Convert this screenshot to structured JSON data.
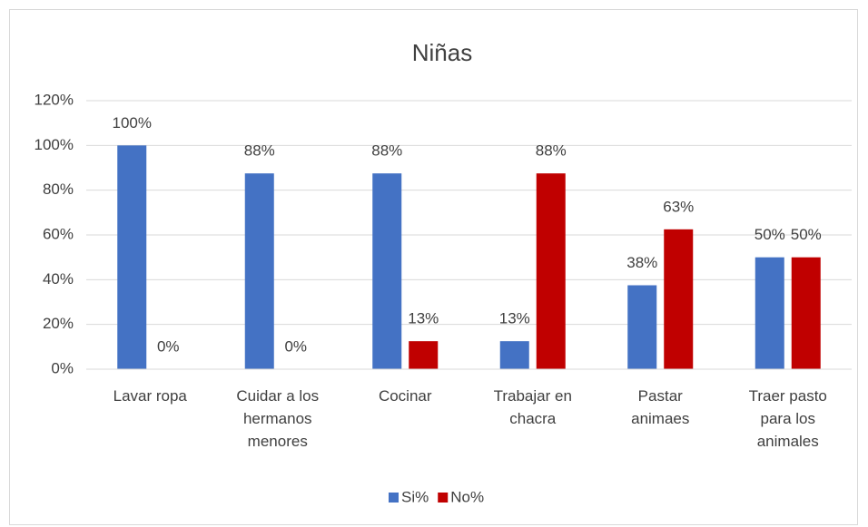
{
  "chart_data": {
    "type": "bar",
    "title": "Niñas",
    "categories": [
      "Lavar ropa",
      "Cuidar a los hermanos menores",
      "Cocinar",
      "Trabajar en chacra",
      "Pastar animaes",
      "Traer pasto para los animales"
    ],
    "series": [
      {
        "name": "Si%",
        "color": "#4472c4",
        "values": [
          100,
          87.5,
          87.5,
          12.5,
          37.5,
          50
        ],
        "value_labels": [
          "100%",
          "88%",
          "88%",
          "13%",
          "38%",
          "50%"
        ]
      },
      {
        "name": "No%",
        "color": "#c00000",
        "values": [
          0,
          0,
          12.5,
          87.5,
          62.5,
          50
        ],
        "value_labels": [
          "0%",
          "0%",
          "13%",
          "88%",
          "63%",
          "50%"
        ]
      }
    ],
    "ylim": [
      0,
      120
    ],
    "yticks": [
      {
        "value": 0,
        "label": "0%"
      },
      {
        "value": 20,
        "label": "20%"
      },
      {
        "value": 40,
        "label": "40%"
      },
      {
        "value": 60,
        "label": "60%"
      },
      {
        "value": 80,
        "label": "80%"
      },
      {
        "value": 100,
        "label": "100%"
      },
      {
        "value": 120,
        "label": "120%"
      }
    ],
    "grid": true,
    "legend": "bottom"
  }
}
